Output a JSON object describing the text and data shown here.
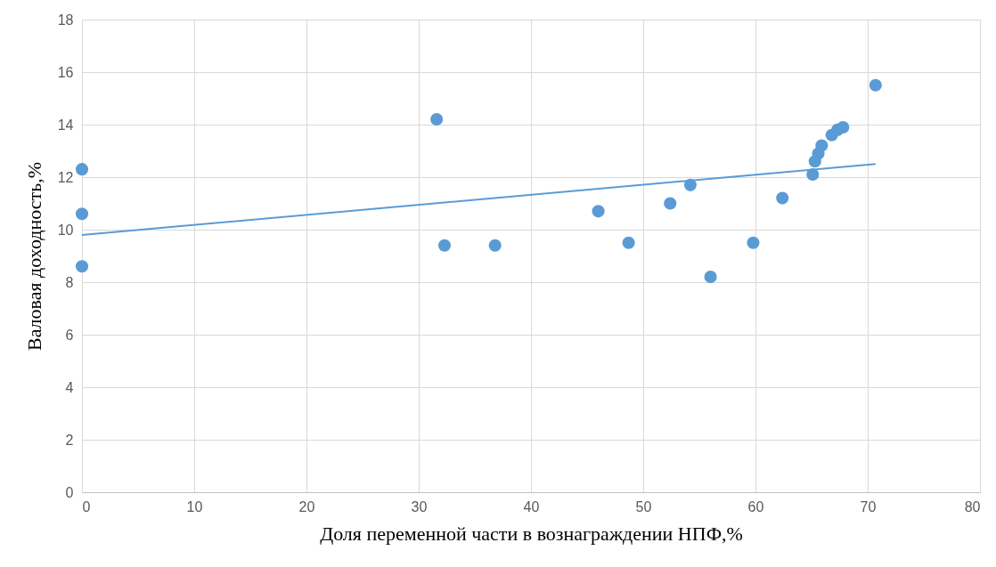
{
  "chart_data": {
    "type": "scatter",
    "xlabel": "Доля переменной части в вознаграждении НПФ,%",
    "ylabel": "Валовая доходность,%",
    "xlim": [
      0,
      80
    ],
    "ylim": [
      0,
      18
    ],
    "xticks": [
      0,
      10,
      20,
      30,
      40,
      50,
      60,
      70,
      80
    ],
    "yticks": [
      0,
      2,
      4,
      6,
      8,
      10,
      12,
      14,
      16,
      18
    ],
    "grid": true,
    "series": [
      {
        "marker": "circle",
        "color": "#5b9bd5",
        "x": [
          0,
          0,
          0,
          31.6,
          32.3,
          36.8,
          46.0,
          48.7,
          52.4,
          54.2,
          56.0,
          59.8,
          62.4,
          65.1,
          65.3,
          65.6,
          65.9,
          66.8,
          67.3,
          67.8,
          70.7
        ],
        "values": [
          12.3,
          10.6,
          8.6,
          14.2,
          9.4,
          9.4,
          10.7,
          9.5,
          11.0,
          11.7,
          8.2,
          9.5,
          11.2,
          12.1,
          12.6,
          12.9,
          13.2,
          13.6,
          13.8,
          13.9,
          15.5
        ]
      },
      {
        "type": "line",
        "color": "#5b9bd5",
        "x": [
          0,
          70.7
        ],
        "values": [
          9.8,
          12.5
        ]
      }
    ]
  }
}
